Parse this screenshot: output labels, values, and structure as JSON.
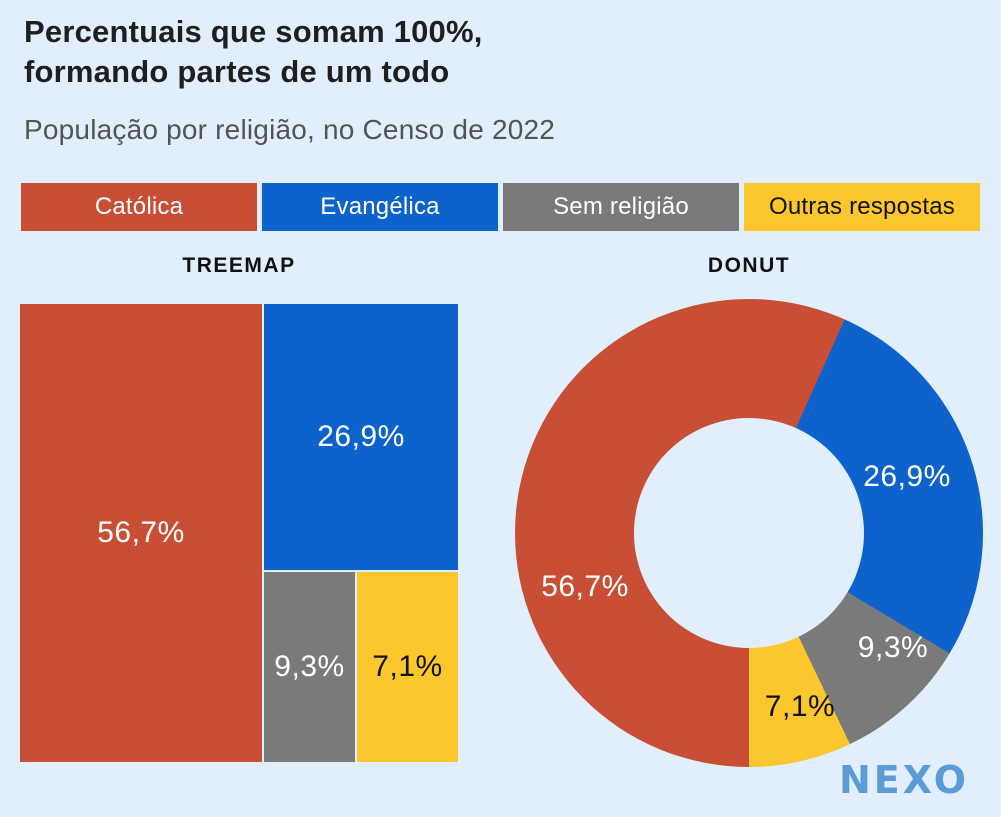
{
  "page": {
    "background": "#e1eefb"
  },
  "header": {
    "title_line1": "Percentuais que somam 100%,",
    "title_line2": "formando partes de um todo",
    "subtitle": "População por religião, no Censo de 2022"
  },
  "legend": {
    "items": [
      {
        "label": "Católica",
        "color": "#c84f35",
        "text_color": "#ffffff"
      },
      {
        "label": "Evangélica",
        "color": "#0d62cc",
        "text_color": "#ffffff"
      },
      {
        "label": "Sem religião",
        "color": "#7a7a7a",
        "text_color": "#ffffff"
      },
      {
        "label": "Outras respostas",
        "color": "#fbc72d",
        "text_color": "#121212"
      }
    ]
  },
  "sections": {
    "treemap_label": "TREEMAP",
    "donut_label": "DONUT"
  },
  "chart_data": [
    {
      "type": "treemap",
      "title": "TREEMAP",
      "categories": [
        "Católica",
        "Evangélica",
        "Sem religião",
        "Outras respostas"
      ],
      "values": [
        56.7,
        26.9,
        9.3,
        7.1
      ],
      "value_labels": [
        "56,7%",
        "26,9%",
        "9,3%",
        "7,1%"
      ],
      "colors": [
        "#c84f35",
        "#0d62cc",
        "#7a7a7a",
        "#fbc72d"
      ],
      "unit": "%",
      "total": 100
    },
    {
      "type": "pie",
      "subtype": "donut",
      "title": "DONUT",
      "categories": [
        "Católica",
        "Evangélica",
        "Sem religião",
        "Outras respostas"
      ],
      "values": [
        56.7,
        26.9,
        9.3,
        7.1
      ],
      "value_labels": [
        "56,7%",
        "26,9%",
        "9,3%",
        "7,1%"
      ],
      "colors": [
        "#c84f35",
        "#0d62cc",
        "#7a7a7a",
        "#fbc72d"
      ],
      "unit": "%",
      "total": 100,
      "start_angle_clockwise_from_top_deg": 180,
      "inner_radius_ratio": 0.49,
      "legend_position": "top"
    }
  ],
  "branding": {
    "logo_text": "NEXO",
    "logo_color": "#5c9cd6"
  }
}
